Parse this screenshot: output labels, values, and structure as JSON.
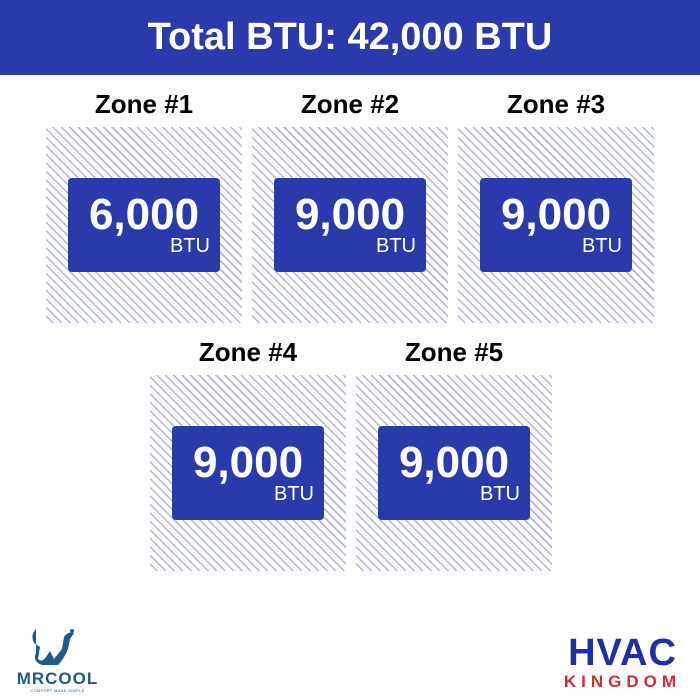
{
  "header": {
    "title": "Total BTU: 42,000 BTU"
  },
  "colors": {
    "primary": "#2b3aab",
    "hatch": "#aeb4e2",
    "kingdom_red": "#d42a3a"
  },
  "zones": [
    {
      "label": "Zone #1",
      "value": "6,000",
      "unit": "BTU"
    },
    {
      "label": "Zone #2",
      "value": "9,000",
      "unit": "BTU"
    },
    {
      "label": "Zone #3",
      "value": "9,000",
      "unit": "BTU"
    },
    {
      "label": "Zone #4",
      "value": "9,000",
      "unit": "BTU"
    },
    {
      "label": "Zone #5",
      "value": "9,000",
      "unit": "BTU"
    }
  ],
  "logos": {
    "mrcool": {
      "name": "MRCOOL",
      "tagline": "COMFORT MADE SIMPLE"
    },
    "hvac": {
      "line1": "HVAC",
      "line2": "KINGDOM"
    }
  }
}
